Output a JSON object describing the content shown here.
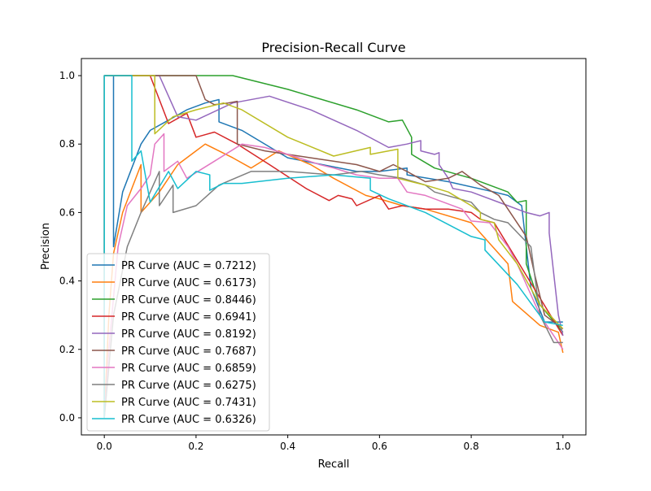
{
  "chart_data": {
    "type": "line",
    "title": "Precision-Recall Curve",
    "xlabel": "Recall",
    "ylabel": "Precision",
    "xlim": [
      -0.05,
      1.05
    ],
    "ylim": [
      -0.05,
      1.05
    ],
    "xticks": [
      "0.0",
      "0.2",
      "0.4",
      "0.6",
      "0.8",
      "1.0"
    ],
    "yticks": [
      "0.0",
      "0.2",
      "0.4",
      "0.6",
      "0.8",
      "1.0"
    ],
    "grid": false,
    "legend_position": "lower-left",
    "series": [
      {
        "name": "PR Curve (AUC = 0.7212)",
        "color": "#1f77b4",
        "points": [
          [
            0,
            0
          ],
          [
            0,
            1.0
          ],
          [
            0.02,
            1.0
          ],
          [
            0.02,
            0.5
          ],
          [
            0.04,
            0.66
          ],
          [
            0.08,
            0.8
          ],
          [
            0.1,
            0.84
          ],
          [
            0.14,
            0.87
          ],
          [
            0.18,
            0.9
          ],
          [
            0.22,
            0.92
          ],
          [
            0.25,
            0.93
          ],
          [
            0.25,
            0.865
          ],
          [
            0.3,
            0.84
          ],
          [
            0.4,
            0.76
          ],
          [
            0.55,
            0.72
          ],
          [
            0.6,
            0.72
          ],
          [
            0.66,
            0.73
          ],
          [
            0.66,
            0.71
          ],
          [
            0.75,
            0.69
          ],
          [
            0.85,
            0.66
          ],
          [
            0.88,
            0.65
          ],
          [
            0.91,
            0.62
          ],
          [
            0.93,
            0.38
          ],
          [
            0.96,
            0.28
          ],
          [
            1.0,
            0.28
          ]
        ]
      },
      {
        "name": "PR Curve (AUC = 0.6173)",
        "color": "#ff7f0e",
        "points": [
          [
            0,
            0
          ],
          [
            0.01,
            0.3
          ],
          [
            0.02,
            0.48
          ],
          [
            0.04,
            0.6
          ],
          [
            0.06,
            0.67
          ],
          [
            0.08,
            0.74
          ],
          [
            0.08,
            0.6
          ],
          [
            0.12,
            0.66
          ],
          [
            0.16,
            0.74
          ],
          [
            0.2,
            0.78
          ],
          [
            0.22,
            0.8
          ],
          [
            0.28,
            0.76
          ],
          [
            0.32,
            0.73
          ],
          [
            0.38,
            0.78
          ],
          [
            0.45,
            0.74
          ],
          [
            0.5,
            0.7
          ],
          [
            0.57,
            0.65
          ],
          [
            0.6,
            0.64
          ],
          [
            0.65,
            0.62
          ],
          [
            0.7,
            0.61
          ],
          [
            0.8,
            0.57
          ],
          [
            0.84,
            0.51
          ],
          [
            0.88,
            0.45
          ],
          [
            0.89,
            0.34
          ],
          [
            0.95,
            0.27
          ],
          [
            0.99,
            0.25
          ],
          [
            1.0,
            0.19
          ]
        ]
      },
      {
        "name": "PR Curve (AUC = 0.8446)",
        "color": "#2ca02c",
        "points": [
          [
            0,
            0
          ],
          [
            0,
            1.0
          ],
          [
            0.28,
            1.0
          ],
          [
            0.4,
            0.96
          ],
          [
            0.55,
            0.9
          ],
          [
            0.62,
            0.865
          ],
          [
            0.65,
            0.87
          ],
          [
            0.67,
            0.82
          ],
          [
            0.67,
            0.77
          ],
          [
            0.72,
            0.73
          ],
          [
            0.8,
            0.7
          ],
          [
            0.88,
            0.66
          ],
          [
            0.9,
            0.63
          ],
          [
            0.92,
            0.635
          ],
          [
            0.92,
            0.45
          ],
          [
            0.95,
            0.33
          ],
          [
            1.0,
            0.25
          ]
        ]
      },
      {
        "name": "PR Curve (AUC = 0.6941)",
        "color": "#d62728",
        "points": [
          [
            0,
            0
          ],
          [
            0,
            1.0
          ],
          [
            0.1,
            1.0
          ],
          [
            0.14,
            0.86
          ],
          [
            0.18,
            0.89
          ],
          [
            0.2,
            0.82
          ],
          [
            0.24,
            0.835
          ],
          [
            0.29,
            0.8
          ],
          [
            0.36,
            0.74
          ],
          [
            0.44,
            0.67
          ],
          [
            0.49,
            0.635
          ],
          [
            0.51,
            0.65
          ],
          [
            0.54,
            0.64
          ],
          [
            0.55,
            0.62
          ],
          [
            0.6,
            0.65
          ],
          [
            0.62,
            0.61
          ],
          [
            0.65,
            0.62
          ],
          [
            0.7,
            0.61
          ],
          [
            0.75,
            0.61
          ],
          [
            0.8,
            0.6
          ],
          [
            0.82,
            0.58
          ],
          [
            0.85,
            0.57
          ],
          [
            0.9,
            0.46
          ],
          [
            0.95,
            0.35
          ],
          [
            1.0,
            0.24
          ]
        ]
      },
      {
        "name": "PR Curve (AUC = 0.8192)",
        "color": "#9467bd",
        "points": [
          [
            0,
            0
          ],
          [
            0,
            1.0
          ],
          [
            0.12,
            1.0
          ],
          [
            0.16,
            0.88
          ],
          [
            0.2,
            0.87
          ],
          [
            0.28,
            0.92
          ],
          [
            0.36,
            0.94
          ],
          [
            0.45,
            0.9
          ],
          [
            0.55,
            0.84
          ],
          [
            0.62,
            0.79
          ],
          [
            0.66,
            0.8
          ],
          [
            0.69,
            0.81
          ],
          [
            0.69,
            0.78
          ],
          [
            0.72,
            0.77
          ],
          [
            0.73,
            0.775
          ],
          [
            0.73,
            0.74
          ],
          [
            0.75,
            0.7
          ],
          [
            0.76,
            0.67
          ],
          [
            0.8,
            0.66
          ],
          [
            0.88,
            0.62
          ],
          [
            0.92,
            0.6
          ],
          [
            0.95,
            0.59
          ],
          [
            0.97,
            0.6
          ],
          [
            0.97,
            0.54
          ],
          [
            0.99,
            0.3
          ],
          [
            1.0,
            0.24
          ]
        ]
      },
      {
        "name": "PR Curve (AUC = 0.7687)",
        "color": "#8c564b",
        "points": [
          [
            0,
            0
          ],
          [
            0,
            1.0
          ],
          [
            0.2,
            1.0
          ],
          [
            0.22,
            0.93
          ],
          [
            0.24,
            0.915
          ],
          [
            0.27,
            0.92
          ],
          [
            0.29,
            0.925
          ],
          [
            0.29,
            0.8
          ],
          [
            0.35,
            0.78
          ],
          [
            0.45,
            0.76
          ],
          [
            0.55,
            0.74
          ],
          [
            0.6,
            0.72
          ],
          [
            0.63,
            0.74
          ],
          [
            0.66,
            0.72
          ],
          [
            0.7,
            0.69
          ],
          [
            0.75,
            0.7
          ],
          [
            0.78,
            0.72
          ],
          [
            0.82,
            0.68
          ],
          [
            0.86,
            0.65
          ],
          [
            0.88,
            0.61
          ],
          [
            0.92,
            0.53
          ],
          [
            0.94,
            0.41
          ],
          [
            0.96,
            0.3
          ],
          [
            1.0,
            0.26
          ]
        ]
      },
      {
        "name": "PR Curve (AUC = 0.6859)",
        "color": "#e377c2",
        "points": [
          [
            0,
            0
          ],
          [
            0.01,
            0.2
          ],
          [
            0.03,
            0.5
          ],
          [
            0.05,
            0.62
          ],
          [
            0.08,
            0.67
          ],
          [
            0.1,
            0.71
          ],
          [
            0.11,
            0.8
          ],
          [
            0.13,
            0.83
          ],
          [
            0.13,
            0.72
          ],
          [
            0.16,
            0.75
          ],
          [
            0.18,
            0.7
          ],
          [
            0.24,
            0.75
          ],
          [
            0.3,
            0.8
          ],
          [
            0.35,
            0.79
          ],
          [
            0.4,
            0.77
          ],
          [
            0.47,
            0.74
          ],
          [
            0.5,
            0.73
          ],
          [
            0.55,
            0.71
          ],
          [
            0.6,
            0.7
          ],
          [
            0.64,
            0.7
          ],
          [
            0.66,
            0.66
          ],
          [
            0.7,
            0.65
          ],
          [
            0.78,
            0.61
          ],
          [
            0.8,
            0.575
          ],
          [
            0.84,
            0.57
          ],
          [
            0.88,
            0.5
          ],
          [
            0.9,
            0.45
          ],
          [
            0.95,
            0.3
          ],
          [
            1.0,
            0.2
          ]
        ]
      },
      {
        "name": "PR Curve (AUC = 0.6275)",
        "color": "#7f7f7f",
        "points": [
          [
            0,
            0
          ],
          [
            0.02,
            0.3
          ],
          [
            0.05,
            0.5
          ],
          [
            0.08,
            0.6
          ],
          [
            0.12,
            0.72
          ],
          [
            0.12,
            0.62
          ],
          [
            0.15,
            0.68
          ],
          [
            0.15,
            0.6
          ],
          [
            0.2,
            0.62
          ],
          [
            0.25,
            0.68
          ],
          [
            0.32,
            0.72
          ],
          [
            0.4,
            0.72
          ],
          [
            0.5,
            0.71
          ],
          [
            0.56,
            0.72
          ],
          [
            0.6,
            0.71
          ],
          [
            0.65,
            0.7
          ],
          [
            0.7,
            0.68
          ],
          [
            0.72,
            0.66
          ],
          [
            0.8,
            0.63
          ],
          [
            0.82,
            0.6
          ],
          [
            0.85,
            0.58
          ],
          [
            0.88,
            0.57
          ],
          [
            0.93,
            0.5
          ],
          [
            0.95,
            0.3
          ],
          [
            0.98,
            0.22
          ],
          [
            1.0,
            0.22
          ]
        ]
      },
      {
        "name": "PR Curve (AUC = 0.7431)",
        "color": "#bcbd22",
        "points": [
          [
            0,
            0
          ],
          [
            0,
            1.0
          ],
          [
            0.11,
            1.0
          ],
          [
            0.11,
            0.83
          ],
          [
            0.15,
            0.88
          ],
          [
            0.2,
            0.9
          ],
          [
            0.26,
            0.92
          ],
          [
            0.3,
            0.9
          ],
          [
            0.4,
            0.82
          ],
          [
            0.5,
            0.765
          ],
          [
            0.58,
            0.79
          ],
          [
            0.58,
            0.77
          ],
          [
            0.64,
            0.785
          ],
          [
            0.64,
            0.7
          ],
          [
            0.7,
            0.68
          ],
          [
            0.75,
            0.66
          ],
          [
            0.8,
            0.62
          ],
          [
            0.82,
            0.6
          ],
          [
            0.82,
            0.58
          ],
          [
            0.85,
            0.57
          ],
          [
            0.86,
            0.52
          ],
          [
            0.9,
            0.45
          ],
          [
            0.95,
            0.33
          ],
          [
            1.0,
            0.26
          ]
        ]
      },
      {
        "name": "PR Curve (AUC = 0.6326)",
        "color": "#17becf",
        "points": [
          [
            0,
            0
          ],
          [
            0,
            1.0
          ],
          [
            0.06,
            1.0
          ],
          [
            0.06,
            0.75
          ],
          [
            0.08,
            0.78
          ],
          [
            0.1,
            0.63
          ],
          [
            0.14,
            0.72
          ],
          [
            0.16,
            0.67
          ],
          [
            0.2,
            0.72
          ],
          [
            0.23,
            0.71
          ],
          [
            0.23,
            0.665
          ],
          [
            0.26,
            0.685
          ],
          [
            0.3,
            0.685
          ],
          [
            0.4,
            0.7
          ],
          [
            0.5,
            0.71
          ],
          [
            0.58,
            0.7
          ],
          [
            0.58,
            0.665
          ],
          [
            0.62,
            0.64
          ],
          [
            0.7,
            0.6
          ],
          [
            0.8,
            0.53
          ],
          [
            0.83,
            0.52
          ],
          [
            0.83,
            0.49
          ],
          [
            0.9,
            0.39
          ],
          [
            0.96,
            0.28
          ],
          [
            1.0,
            0.27
          ]
        ]
      }
    ]
  }
}
